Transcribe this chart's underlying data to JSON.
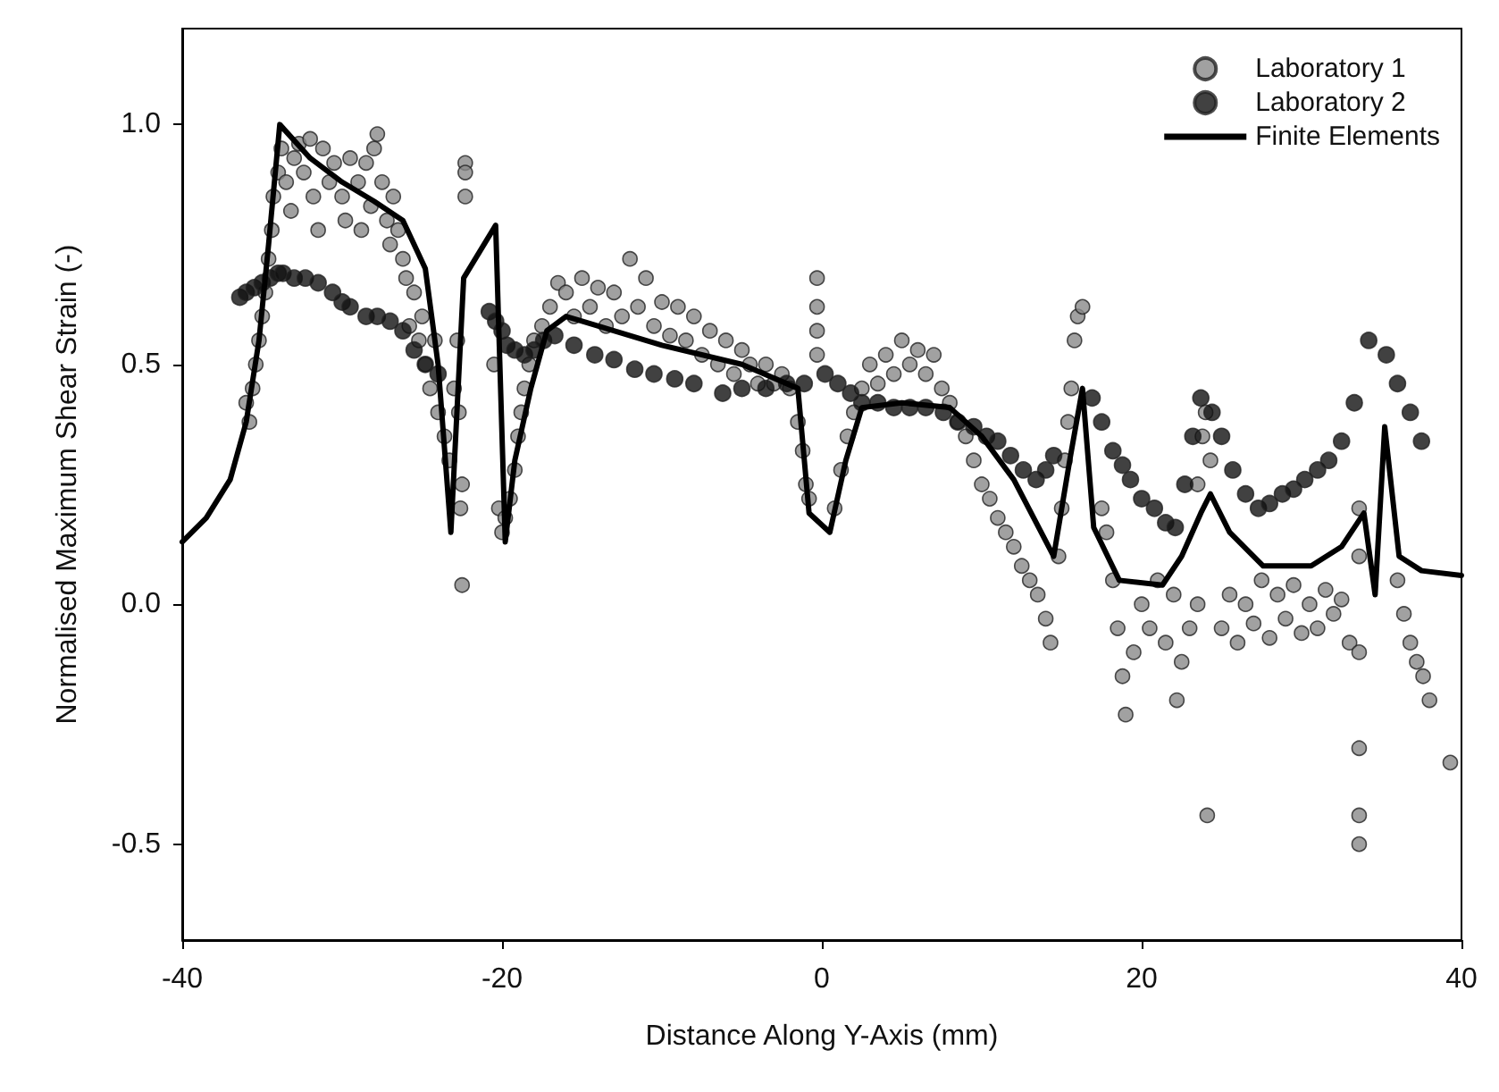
{
  "chart_data": {
    "type": "scatter",
    "xlabel": "Distance Along Y-Axis (mm)",
    "ylabel": "Normalised Maximum Shear Strain (-)",
    "xlim": [
      -40,
      40
    ],
    "xticks": [
      -40,
      -20,
      0,
      20,
      40
    ],
    "ylim": [
      -0.7,
      1.2
    ],
    "yticks": [
      {
        "value": -0.5,
        "label": "-0.5"
      },
      {
        "value": 0,
        "label": "0.0"
      },
      {
        "value": 0.5,
        "label": "0.5"
      },
      {
        "value": 1,
        "label": "1.0"
      }
    ],
    "grid": false,
    "legend": "top right",
    "series": [
      {
        "name": "Laboratory 1",
        "marker": "circle",
        "color": "#8a8a8a",
        "x": [
          -36,
          -35.8,
          -35.6,
          -35.4,
          -35.2,
          -35,
          -34.8,
          -34.6,
          -34.4,
          -34.3,
          -34,
          -33.8,
          -33.5,
          -33.2,
          -33,
          -32.7,
          -32.4,
          -32,
          -31.8,
          -31.5,
          -31.2,
          -30.8,
          -30.5,
          -30,
          -29.8,
          -29.5,
          -29,
          -28.8,
          -28.5,
          -28.2,
          -28,
          -27.8,
          -27.5,
          -27.2,
          -27,
          -26.8,
          -26.5,
          -26.2,
          -26,
          -25.8,
          -25.5,
          -25.2,
          -25,
          -24.8,
          -24.5,
          -24.2,
          -24,
          -23.6,
          -23.3,
          -23,
          -22.8,
          -22.7,
          -22.6,
          -22.5,
          -22.3,
          -22.3,
          -22.3,
          -22.5,
          -20.5,
          -20.2,
          -20,
          -19.8,
          -19.5,
          -19.2,
          -19,
          -18.8,
          -18.6,
          -18.3,
          -18,
          -17.5,
          -17,
          -16.5,
          -16,
          -15.5,
          -15,
          -14.5,
          -14,
          -13.5,
          -13,
          -12.5,
          -12,
          -11.5,
          -11,
          -10.5,
          -10,
          -9.5,
          -9,
          -8.5,
          -8,
          -7.5,
          -7,
          -6.5,
          -6,
          -5.5,
          -5,
          -4.5,
          -4,
          -3.5,
          -3,
          -2.5,
          -2,
          -1.5,
          -1.2,
          -1,
          -0.8,
          -0.3,
          -0.3,
          -0.3,
          -0.3,
          0.8,
          1.2,
          1.6,
          2,
          2.5,
          3,
          3.5,
          4,
          4.5,
          5,
          5.5,
          6,
          6.5,
          7,
          7.5,
          8,
          8.5,
          9,
          9.5,
          10,
          10.5,
          11,
          11.5,
          12,
          12.5,
          13,
          13.5,
          14,
          14.3,
          14.8,
          15,
          15.2,
          15.4,
          15.6,
          15.8,
          16,
          16.3,
          17.5,
          17.8,
          18.2,
          18.5,
          18.8,
          19,
          19.5,
          20,
          20.5,
          21,
          21.5,
          22,
          22.5,
          23,
          23.5,
          22.2,
          24.1,
          23.5,
          23.8,
          24,
          24.3,
          25,
          25.5,
          26,
          26.5,
          27,
          27.5,
          28,
          28.5,
          29,
          29.5,
          30,
          30.5,
          31,
          31.5,
          32,
          32.5,
          33,
          33.6,
          33.6,
          33.6,
          33.6,
          33.6,
          33.6,
          36,
          36.4,
          36.8,
          37.2,
          37.6,
          38,
          39.3
        ],
        "values": [
          0.42,
          0.38,
          0.45,
          0.5,
          0.55,
          0.6,
          0.65,
          0.72,
          0.78,
          0.85,
          0.9,
          0.95,
          0.88,
          0.82,
          0.93,
          0.96,
          0.9,
          0.97,
          0.85,
          0.78,
          0.95,
          0.88,
          0.92,
          0.85,
          0.8,
          0.93,
          0.88,
          0.78,
          0.92,
          0.83,
          0.95,
          0.98,
          0.88,
          0.8,
          0.75,
          0.85,
          0.78,
          0.72,
          0.68,
          0.58,
          0.65,
          0.55,
          0.6,
          0.5,
          0.45,
          0.55,
          0.4,
          0.35,
          0.3,
          0.45,
          0.55,
          0.4,
          0.2,
          0.25,
          0.92,
          0.9,
          0.85,
          0.04,
          0.5,
          0.2,
          0.15,
          0.18,
          0.22,
          0.28,
          0.35,
          0.4,
          0.45,
          0.5,
          0.55,
          0.58,
          0.62,
          0.67,
          0.65,
          0.6,
          0.68,
          0.62,
          0.66,
          0.58,
          0.65,
          0.6,
          0.72,
          0.62,
          0.68,
          0.58,
          0.63,
          0.56,
          0.62,
          0.55,
          0.6,
          0.52,
          0.57,
          0.5,
          0.55,
          0.48,
          0.53,
          0.5,
          0.46,
          0.5,
          0.46,
          0.48,
          0.45,
          0.38,
          0.32,
          0.25,
          0.22,
          0.68,
          0.62,
          0.57,
          0.52,
          0.2,
          0.28,
          0.35,
          0.4,
          0.45,
          0.5,
          0.46,
          0.52,
          0.48,
          0.55,
          0.5,
          0.53,
          0.48,
          0.52,
          0.45,
          0.42,
          0.38,
          0.35,
          0.3,
          0.25,
          0.22,
          0.18,
          0.15,
          0.12,
          0.08,
          0.05,
          0.02,
          -0.03,
          -0.08,
          0.1,
          0.2,
          0.3,
          0.38,
          0.45,
          0.55,
          0.6,
          0.62,
          0.2,
          0.15,
          0.05,
          -0.05,
          -0.15,
          -0.23,
          -0.1,
          0,
          -0.05,
          0.05,
          -0.08,
          0.02,
          -0.12,
          -0.05,
          0,
          -0.2,
          -0.44,
          0.25,
          0.35,
          0.4,
          0.3,
          -0.05,
          0.02,
          -0.08,
          0,
          -0.04,
          0.05,
          -0.07,
          0.02,
          -0.03,
          0.04,
          -0.06,
          0,
          -0.05,
          0.03,
          -0.02,
          0.01,
          -0.08,
          0.2,
          0.1,
          -0.1,
          -0.3,
          -0.44,
          -0.5,
          0.05,
          -0.02,
          -0.08,
          -0.12,
          -0.15,
          -0.2,
          -0.33
        ]
      },
      {
        "name": "Laboratory 2",
        "marker": "circle",
        "color": "#111111",
        "x": [
          -36.4,
          -36,
          -35.5,
          -35,
          -34.5,
          -34,
          -33.7,
          -33,
          -32.3,
          -31.5,
          -30.6,
          -30,
          -29.5,
          -28.5,
          -27.8,
          -27,
          -26.2,
          -25.5,
          -24.8,
          -24,
          -20.8,
          -20.4,
          -20,
          -19.7,
          -19.2,
          -18.6,
          -18,
          -17.4,
          -16.7,
          -15.5,
          -14.2,
          -13,
          -11.7,
          -10.5,
          -9.2,
          -8,
          -6.2,
          -5,
          -3.5,
          -2.2,
          -1.1,
          0.2,
          1,
          1.8,
          2.5,
          3.5,
          4.5,
          5.5,
          6.5,
          7.6,
          8.5,
          9.5,
          10.3,
          11,
          11.8,
          12.6,
          13.4,
          14,
          14.5,
          16.9,
          17.5,
          18.2,
          18.8,
          19.3,
          20,
          20.8,
          21.5,
          22.1,
          22.7,
          23.2,
          23.7,
          24.4,
          25,
          25.7,
          26.5,
          27.3,
          28,
          28.8,
          29.5,
          30.2,
          31,
          31.7,
          32.5,
          33.3,
          34.2,
          35.3,
          36,
          36.8,
          37.5
        ],
        "values": [
          0.64,
          0.65,
          0.66,
          0.67,
          0.68,
          0.69,
          0.69,
          0.68,
          0.68,
          0.67,
          0.65,
          0.63,
          0.62,
          0.6,
          0.6,
          0.59,
          0.57,
          0.53,
          0.5,
          0.48,
          0.61,
          0.59,
          0.57,
          0.54,
          0.53,
          0.52,
          0.53,
          0.55,
          0.56,
          0.54,
          0.52,
          0.51,
          0.49,
          0.48,
          0.47,
          0.46,
          0.44,
          0.45,
          0.45,
          0.46,
          0.46,
          0.48,
          0.46,
          0.44,
          0.42,
          0.42,
          0.41,
          0.41,
          0.41,
          0.4,
          0.38,
          0.37,
          0.35,
          0.34,
          0.31,
          0.28,
          0.26,
          0.28,
          0.31,
          0.43,
          0.38,
          0.32,
          0.29,
          0.26,
          0.22,
          0.2,
          0.17,
          0.16,
          0.25,
          0.35,
          0.43,
          0.4,
          0.35,
          0.28,
          0.23,
          0.2,
          0.21,
          0.23,
          0.24,
          0.26,
          0.28,
          0.3,
          0.34,
          0.42,
          0.55,
          0.52,
          0.46,
          0.4,
          0.34
        ]
      },
      {
        "name": "Finite Elements",
        "type": "line",
        "marker": "none",
        "line_style": "solid",
        "color": "#000000",
        "x": [
          -40,
          -38.5,
          -37,
          -36,
          -35.2,
          -34.6,
          -33.9,
          -32,
          -30,
          -28,
          -26.2,
          -24.8,
          -24,
          -23.2,
          -22.4,
          -20.4,
          -19.8,
          -19.2,
          -18.2,
          -17.2,
          -16,
          -15,
          -10,
          -5,
          -1.5,
          -0.8,
          0.5,
          1.5,
          2.5,
          5,
          8,
          10,
          12,
          14.5,
          15.5,
          16.3,
          17,
          18.6,
          21.3,
          22.5,
          23.7,
          24.3,
          25.5,
          27.6,
          30.6,
          32.5,
          33.9,
          34.6,
          35.2,
          36.1,
          37.5,
          40
        ],
        "values": [
          0.13,
          0.18,
          0.26,
          0.38,
          0.55,
          0.75,
          1.0,
          0.93,
          0.88,
          0.84,
          0.8,
          0.7,
          0.5,
          0.15,
          0.68,
          0.79,
          0.13,
          0.3,
          0.45,
          0.57,
          0.6,
          0.59,
          0.54,
          0.5,
          0.45,
          0.19,
          0.15,
          0.3,
          0.41,
          0.42,
          0.41,
          0.35,
          0.26,
          0.1,
          0.3,
          0.45,
          0.16,
          0.05,
          0.04,
          0.1,
          0.19,
          0.23,
          0.15,
          0.08,
          0.08,
          0.12,
          0.19,
          0.02,
          0.37,
          0.1,
          0.07,
          0.06
        ]
      }
    ]
  }
}
